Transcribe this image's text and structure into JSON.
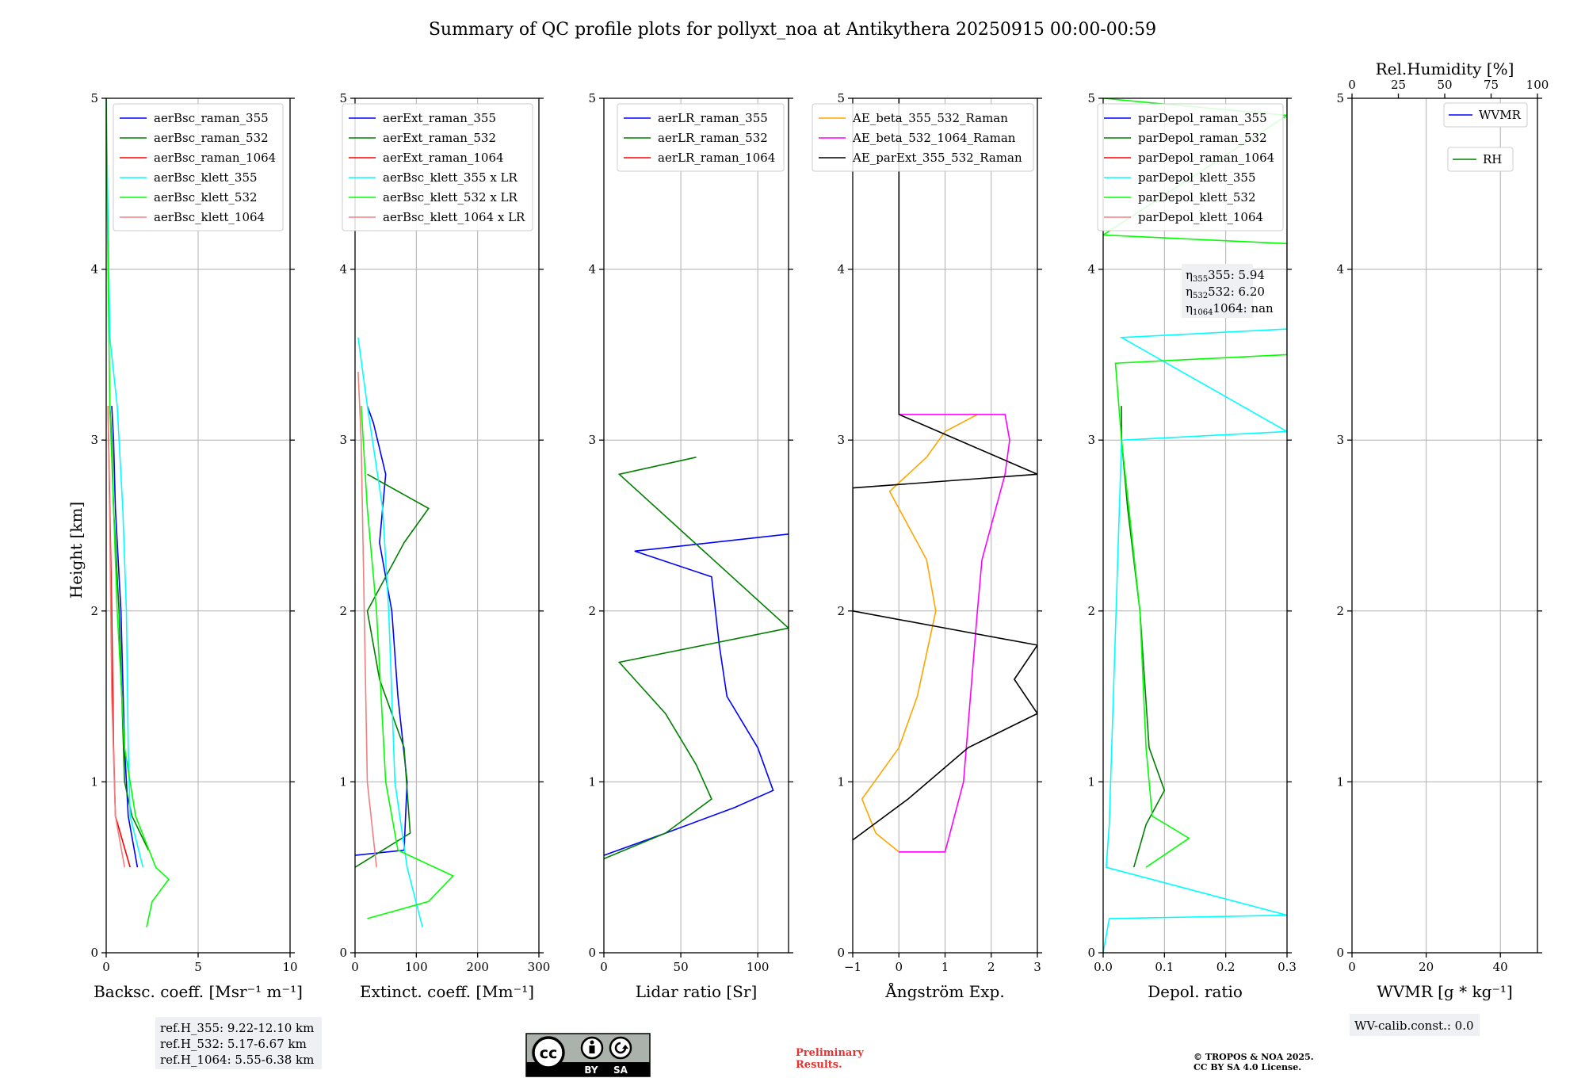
{
  "figure": {
    "title": "Summary of QC profile plots for pollyxt_noa at Antikythera 20250915 00:00-00:59",
    "ylabel": "Height [km]",
    "ref_heights": [
      "ref.H_355: 9.22-12.10 km",
      "ref.H_532: 5.17-6.67 km",
      "ref.H_1064: 5.55-6.38 km"
    ],
    "preliminary": [
      "Preliminary",
      "Results."
    ],
    "copyright": [
      "© TROPOS & NOA 2025.",
      "CC BY SA 4.0 License."
    ],
    "license_badge": [
      "cc",
      "BY",
      "SA"
    ],
    "wv_calib": "WV-calib.const.: 0.0",
    "eta": [
      "355: 5.94",
      "532: 6.20",
      "1064: nan"
    ],
    "colors": {
      "blue": "#0000ff",
      "green": "#008000",
      "red": "#ff0000",
      "cyan": "#00ffff",
      "lime": "#00ff00",
      "salmon": "#f08080",
      "orange": "#ffa500",
      "magenta": "#ff00ff",
      "black": "#000000"
    }
  },
  "chart_data": [
    {
      "type": "line",
      "xlabel": "Backsc. coeff. [Msr⁻¹ m⁻¹]",
      "xlim": [
        0,
        10
      ],
      "ylim": [
        0,
        5
      ],
      "xticks": [
        0,
        5,
        10
      ],
      "yticks": [
        0,
        1,
        2,
        3,
        4,
        5
      ],
      "grid": true,
      "legend_position": "top-right",
      "series": [
        {
          "name": "aerBsc_raman_355",
          "color": "#0000ff",
          "points": [
            [
              1.7,
              0.5
            ],
            [
              1.2,
              0.8
            ],
            [
              1.0,
              1.2
            ],
            [
              0.8,
              2.0
            ],
            [
              0.5,
              2.6
            ],
            [
              0.4,
              3.0
            ],
            [
              0.3,
              3.2
            ]
          ]
        },
        {
          "name": "aerBsc_raman_532",
          "color": "#008000",
          "points": [
            [
              2.3,
              0.6
            ],
            [
              1.4,
              0.8
            ],
            [
              1.0,
              1.0
            ],
            [
              0.7,
              2.0
            ],
            [
              0.4,
              2.6
            ],
            [
              0.3,
              3.0
            ],
            [
              0.2,
              3.2
            ]
          ]
        },
        {
          "name": "aerBsc_raman_1064",
          "color": "#ff0000",
          "points": [
            [
              1.3,
              0.5
            ],
            [
              0.5,
              0.8
            ],
            [
              0.4,
              1.2
            ],
            [
              0.3,
              2.0
            ],
            [
              0.2,
              2.6
            ],
            [
              0.1,
              3.2
            ]
          ]
        },
        {
          "name": "aerBsc_klett_355",
          "color": "#00ffff",
          "points": [
            [
              2.0,
              0.5
            ],
            [
              1.3,
              0.8
            ],
            [
              1.2,
              1.2
            ],
            [
              1.1,
              2.0
            ],
            [
              0.9,
              2.6
            ],
            [
              0.6,
              3.2
            ],
            [
              0.2,
              3.6
            ],
            [
              0.1,
              4.3
            ],
            [
              0.0,
              5.0
            ]
          ]
        },
        {
          "name": "aerBsc_klett_532",
          "color": "#00ff00",
          "points": [
            [
              2.2,
              0.15
            ],
            [
              2.5,
              0.3
            ],
            [
              3.4,
              0.43
            ],
            [
              2.7,
              0.5
            ],
            [
              1.6,
              0.8
            ],
            [
              1.0,
              1.2
            ],
            [
              0.6,
              2.0
            ],
            [
              0.4,
              2.6
            ],
            [
              0.2,
              3.2
            ],
            [
              0.1,
              4.0
            ],
            [
              0.0,
              5.0
            ]
          ]
        },
        {
          "name": "aerBsc_klett_1064",
          "color": "#f08080",
          "points": [
            [
              1.0,
              0.5
            ],
            [
              0.5,
              0.8
            ],
            [
              0.3,
              1.5
            ],
            [
              0.2,
              2.5
            ],
            [
              0.1,
              3.2
            ]
          ]
        }
      ]
    },
    {
      "type": "line",
      "xlabel": "Extinct. coeff. [Mm⁻¹]",
      "xlim": [
        0,
        300
      ],
      "ylim": [
        0,
        5
      ],
      "xticks": [
        0,
        100,
        200,
        300
      ],
      "yticks": [
        0,
        1,
        2,
        3,
        4,
        5
      ],
      "grid": true,
      "legend_position": "top-right",
      "series": [
        {
          "name": "aerExt_raman_355",
          "color": "#0000ff",
          "points": [
            [
              0,
              0.57
            ],
            [
              80,
              0.6
            ],
            [
              85,
              1.0
            ],
            [
              70,
              1.5
            ],
            [
              60,
              2.0
            ],
            [
              40,
              2.4
            ],
            [
              50,
              2.8
            ],
            [
              30,
              3.1
            ],
            [
              20,
              3.2
            ]
          ]
        },
        {
          "name": "aerExt_raman_532",
          "color": "#008000",
          "points": [
            [
              0,
              0.5
            ],
            [
              90,
              0.7
            ],
            [
              80,
              1.2
            ],
            [
              40,
              1.6
            ],
            [
              20,
              2.0
            ],
            [
              80,
              2.4
            ],
            [
              120,
              2.6
            ],
            [
              20,
              2.8
            ]
          ]
        },
        {
          "name": "aerExt_raman_1064",
          "color": "#ff0000",
          "points": []
        },
        {
          "name": "aerBsc_klett_355 x LR",
          "color": "#00ffff",
          "points": [
            [
              110,
              0.15
            ],
            [
              85,
              0.5
            ],
            [
              65,
              1.0
            ],
            [
              55,
              2.0
            ],
            [
              45,
              2.6
            ],
            [
              20,
              3.2
            ],
            [
              5,
              3.6
            ]
          ]
        },
        {
          "name": "aerBsc_klett_532 x LR",
          "color": "#00ff00",
          "points": [
            [
              20,
              0.2
            ],
            [
              120,
              0.3
            ],
            [
              160,
              0.45
            ],
            [
              70,
              0.6
            ],
            [
              50,
              1.0
            ],
            [
              35,
              2.0
            ],
            [
              20,
              2.6
            ],
            [
              10,
              3.2
            ]
          ]
        },
        {
          "name": "aerBsc_klett_1064 x LR",
          "color": "#f08080",
          "points": [
            [
              35,
              0.5
            ],
            [
              20,
              1.0
            ],
            [
              15,
              2.0
            ],
            [
              10,
              3.0
            ],
            [
              5,
              3.4
            ]
          ]
        }
      ]
    },
    {
      "type": "line",
      "xlabel": "Lidar ratio [Sr]",
      "xlim": [
        0,
        120
      ],
      "ylim": [
        0,
        5
      ],
      "xticks": [
        0,
        50,
        100
      ],
      "yticks": [
        0,
        1,
        2,
        3,
        4,
        5
      ],
      "grid": true,
      "legend_position": "top-right",
      "series": [
        {
          "name": "aerLR_raman_355",
          "color": "#0000ff",
          "points": [
            [
              0,
              0.57
            ],
            [
              40,
              0.7
            ],
            [
              85,
              0.85
            ],
            [
              110,
              0.95
            ],
            [
              100,
              1.2
            ],
            [
              80,
              1.5
            ],
            [
              75,
              1.8
            ],
            [
              70,
              2.2
            ],
            [
              20,
              2.35
            ],
            [
              120,
              2.45
            ]
          ]
        },
        {
          "name": "aerLR_raman_532",
          "color": "#008000",
          "points": [
            [
              0,
              0.55
            ],
            [
              40,
              0.7
            ],
            [
              70,
              0.9
            ],
            [
              60,
              1.1
            ],
            [
              40,
              1.4
            ],
            [
              10,
              1.7
            ],
            [
              120,
              1.9
            ],
            [
              10,
              2.8
            ],
            [
              60,
              2.9
            ]
          ]
        },
        {
          "name": "aerLR_raman_1064",
          "color": "#ff0000",
          "points": []
        }
      ]
    },
    {
      "type": "line",
      "xlabel": "Ångström Exp.",
      "xlim": [
        -1,
        3
      ],
      "ylim": [
        0,
        5
      ],
      "xticks": [
        -1,
        0,
        1,
        2,
        3
      ],
      "yticks": [
        0,
        1,
        2,
        3,
        4,
        5
      ],
      "grid": true,
      "legend_position": "top-left",
      "series": [
        {
          "name": "AE_beta_355_532_Raman",
          "color": "#ffa500",
          "points": [
            [
              0.0,
              0.59
            ],
            [
              -0.5,
              0.7
            ],
            [
              -0.8,
              0.9
            ],
            [
              0.0,
              1.2
            ],
            [
              0.4,
              1.5
            ],
            [
              0.8,
              2.0
            ],
            [
              0.6,
              2.3
            ],
            [
              0.2,
              2.5
            ],
            [
              -0.2,
              2.7
            ],
            [
              0.6,
              2.9
            ],
            [
              1.0,
              3.05
            ],
            [
              1.7,
              3.15
            ]
          ]
        },
        {
          "name": "AE_beta_532_1064_Raman",
          "color": "#ff00ff",
          "points": [
            [
              0.0,
              0.59
            ],
            [
              1.0,
              0.59
            ],
            [
              1.4,
              1.0
            ],
            [
              1.7,
              2.0
            ],
            [
              1.8,
              2.3
            ],
            [
              2.3,
              2.8
            ],
            [
              2.4,
              3.0
            ],
            [
              2.3,
              3.15
            ],
            [
              0.0,
              3.15
            ]
          ]
        },
        {
          "name": "AE_parExt_355_532_Raman",
          "color": "#000000",
          "points": [
            [
              -1.0,
              0.66
            ],
            [
              0.2,
              0.9
            ],
            [
              1.5,
              1.2
            ],
            [
              3.0,
              1.4
            ],
            [
              2.5,
              1.6
            ],
            [
              3.0,
              1.8
            ],
            [
              1.0,
              1.9
            ],
            [
              -1.0,
              2.0
            ],
            [
              -1.0,
              2.72
            ],
            [
              3.0,
              2.8
            ],
            [
              0.0,
              3.15
            ],
            [
              0.0,
              5.0
            ]
          ]
        }
      ]
    },
    {
      "type": "line",
      "xlabel": "Depol. ratio",
      "xlim": [
        0,
        0.3
      ],
      "ylim": [
        0,
        5
      ],
      "xticks": [
        0.0,
        0.1,
        0.2,
        0.3
      ],
      "yticks": [
        0,
        1,
        2,
        3,
        4,
        5
      ],
      "grid": true,
      "legend_position": "top-left",
      "series": [
        {
          "name": "parDepol_raman_355",
          "color": "#0000ff",
          "points": []
        },
        {
          "name": "parDepol_raman_532",
          "color": "#008000",
          "points": [
            [
              0.05,
              0.5
            ],
            [
              0.07,
              0.75
            ],
            [
              0.1,
              0.95
            ],
            [
              0.075,
              1.2
            ],
            [
              0.06,
              2.0
            ],
            [
              0.04,
              2.6
            ],
            [
              0.03,
              3.0
            ],
            [
              0.03,
              3.2
            ]
          ]
        },
        {
          "name": "parDepol_raman_1064",
          "color": "#ff0000",
          "points": []
        },
        {
          "name": "parDepol_klett_355",
          "color": "#00ffff",
          "points": [
            [
              0.0,
              0.0
            ],
            [
              0.01,
              0.2
            ],
            [
              0.3,
              0.22
            ],
            [
              0.005,
              0.5
            ],
            [
              0.01,
              0.75
            ],
            [
              0.03,
              3.0
            ],
            [
              0.3,
              3.05
            ],
            [
              0.03,
              3.6
            ],
            [
              0.3,
              3.65
            ],
            [
              0.3,
              3.9
            ],
            [
              0.3,
              4.5
            ],
            [
              0.3,
              5.0
            ]
          ]
        },
        {
          "name": "parDepol_klett_532",
          "color": "#00ff00",
          "points": [
            [
              0.07,
              0.5
            ],
            [
              0.14,
              0.67
            ],
            [
              0.08,
              0.8
            ],
            [
              0.07,
              1.2
            ],
            [
              0.06,
              2.0
            ],
            [
              0.03,
              3.0
            ],
            [
              0.02,
              3.45
            ],
            [
              0.3,
              3.5
            ],
            [
              0.3,
              4.15
            ],
            [
              0.0,
              4.2
            ],
            [
              0.3,
              4.9
            ],
            [
              0.0,
              5.0
            ]
          ]
        },
        {
          "name": "parDepol_klett_1064",
          "color": "#f08080",
          "points": []
        }
      ]
    },
    {
      "type": "line",
      "xlabel": "WVMR [g * kg⁻¹]",
      "top_xlabel": "Rel.Humidity [%]",
      "xlim": [
        0,
        50
      ],
      "ylim": [
        0,
        5
      ],
      "xticks": [
        0,
        20,
        40
      ],
      "top_xticks": [
        0,
        25,
        50,
        75,
        100
      ],
      "yticks": [
        0,
        1,
        2,
        3,
        4,
        5
      ],
      "grid": true,
      "legend_position": "top-right",
      "series": [
        {
          "name": "WVMR",
          "color": "#0000ff",
          "points": []
        },
        {
          "name": "RH",
          "color": "#008000",
          "points": []
        }
      ]
    }
  ]
}
